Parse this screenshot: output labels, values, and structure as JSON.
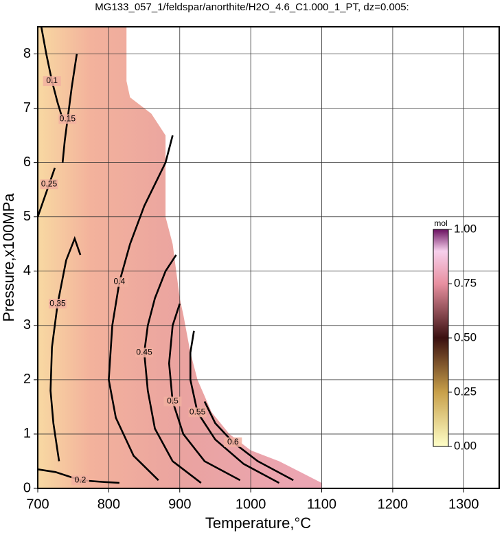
{
  "chart_data": {
    "type": "contour",
    "title": "MG133_057_1/feldspar/anorthite/H2O_4.6_C1.000_1_PT, dz=0.005:",
    "x_label": "Temperature,°C",
    "y_label": "Pressure,x100MPa",
    "xlim": [
      700,
      1350
    ],
    "ylim": [
      0,
      8.5
    ],
    "xticks": [
      700,
      800,
      900,
      1000,
      1100,
      1200,
      1300
    ],
    "yticks": [
      0,
      1,
      2,
      3,
      4,
      5,
      6,
      7,
      8
    ],
    "grid": true,
    "field_boundary": {
      "x": [
        700,
        1100,
        1100,
        1070,
        1040,
        1000,
        970,
        945,
        925,
        915,
        905,
        900,
        895,
        890,
        880,
        880,
        880,
        860,
        830,
        825,
        825,
        700
      ],
      "y": [
        0,
        0,
        0.1,
        0.3,
        0.5,
        0.7,
        1.0,
        1.4,
        2.0,
        2.5,
        3.2,
        3.5,
        4.0,
        4.5,
        5.0,
        5.5,
        6.5,
        6.9,
        7.2,
        7.5,
        8.5,
        8.5
      ]
    },
    "contours": [
      {
        "level": 0.1,
        "x": [
          705,
          712,
          720,
          728,
          735
        ],
        "y": [
          8.5,
          8.0,
          7.5,
          7.1,
          6.8
        ]
      },
      {
        "level": 0.15,
        "x": [
          735,
          738,
          742,
          748,
          755
        ],
        "y": [
          6.0,
          6.4,
          6.8,
          7.4,
          8.0
        ]
      },
      {
        "level": 0.2,
        "x": [
          700,
          725,
          760,
          790,
          815
        ],
        "y": [
          0.35,
          0.3,
          0.15,
          0.12,
          0.1
        ]
      },
      {
        "level": 0.25,
        "x": [
          700,
          708,
          716,
          724
        ],
        "y": [
          5.0,
          5.3,
          5.6,
          5.9
        ]
      },
      {
        "level": 0.35,
        "x": [
          730,
          722,
          718,
          720,
          728,
          740,
          752,
          760
        ],
        "y": [
          0.5,
          1.2,
          1.8,
          2.6,
          3.4,
          4.2,
          4.6,
          4.3
        ]
      },
      {
        "level": 0.4,
        "x": [
          870,
          835,
          810,
          800,
          805,
          815,
          830,
          850,
          880,
          890
        ],
        "y": [
          0.15,
          0.6,
          1.3,
          2.0,
          3.0,
          3.8,
          4.5,
          5.2,
          6.0,
          6.5
        ]
      },
      {
        "level": 0.45,
        "x": [
          930,
          890,
          865,
          855,
          850,
          855,
          865,
          880,
          895
        ],
        "y": [
          0.1,
          0.5,
          1.1,
          1.8,
          2.5,
          3.0,
          3.5,
          4.0,
          4.3
        ]
      },
      {
        "level": 0.5,
        "x": [
          985,
          935,
          905,
          890,
          885,
          890,
          900
        ],
        "y": [
          0.15,
          0.5,
          1.0,
          1.6,
          2.3,
          3.0,
          3.4
        ]
      },
      {
        "level": 0.55,
        "x": [
          1040,
          990,
          950,
          925,
          915,
          915,
          920
        ],
        "y": [
          0.1,
          0.45,
          0.9,
          1.4,
          2.0,
          2.5,
          2.9
        ]
      },
      {
        "level": 0.6,
        "x": [
          1060,
          1010,
          975,
          950,
          935
        ],
        "y": [
          0.15,
          0.5,
          0.85,
          1.2,
          1.6
        ]
      }
    ],
    "colorbar": {
      "label": "mol",
      "lim": [
        0,
        1
      ],
      "ticks": [
        {
          "value": 0,
          "label": "0.00"
        },
        {
          "value": 0.25,
          "label": "0.25"
        },
        {
          "value": 0.5,
          "label": "0.50"
        },
        {
          "value": 0.75,
          "label": "0.75"
        },
        {
          "value": 1,
          "label": "1.00"
        }
      ]
    }
  }
}
